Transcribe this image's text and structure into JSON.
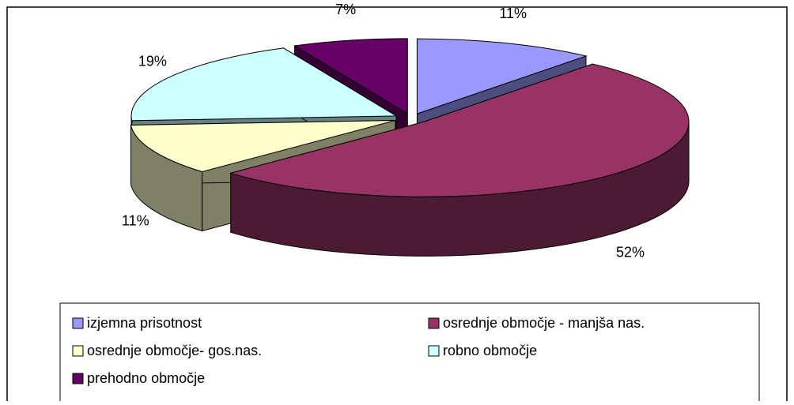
{
  "chart_data": {
    "type": "pie3d",
    "categories": [
      "izjemna prisotnost",
      "osrednje območje - manjša nas.",
      "osrednje območje- gos.nas.",
      "robno območje",
      "prehodno območje"
    ],
    "values": [
      11,
      52,
      11,
      19,
      7
    ],
    "value_labels": [
      "11%",
      "52%",
      "11%",
      "19%",
      "7%"
    ],
    "colors": [
      "#9999ff",
      "#993366",
      "#ffffcc",
      "#ccffff",
      "#660066"
    ]
  }
}
